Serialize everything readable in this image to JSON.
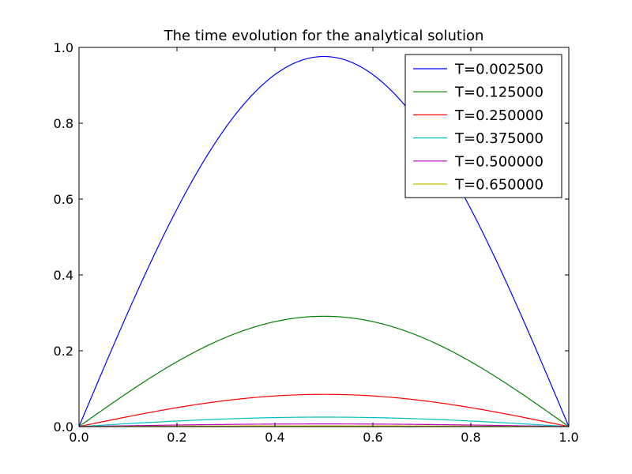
{
  "chart_data": {
    "type": "line",
    "title": "The time evolution for the analytical solution",
    "xlabel": "",
    "ylabel": "",
    "xlim": [
      0.0,
      1.0
    ],
    "ylim": [
      0.0,
      1.0
    ],
    "xticks": [
      "0.0",
      "0.2",
      "0.4",
      "0.6",
      "0.8",
      "1.0"
    ],
    "yticks": [
      "0.0",
      "0.2",
      "0.4",
      "0.6",
      "0.8",
      "1.0"
    ],
    "grid": false,
    "legend_position": "top-right",
    "curve_shape": "half-sine",
    "series": [
      {
        "name": "T=0.002500",
        "color": "#0000ff",
        "peak": 0.976,
        "x": [
          0.0,
          0.1,
          0.2,
          0.3,
          0.4,
          0.5,
          0.6,
          0.7,
          0.8,
          0.9,
          1.0
        ],
        "y": [
          0.0,
          0.302,
          0.574,
          0.79,
          0.928,
          0.976,
          0.928,
          0.79,
          0.574,
          0.302,
          0.0
        ]
      },
      {
        "name": "T=0.125000",
        "color": "#008000",
        "peak": 0.291,
        "x": [
          0.0,
          0.1,
          0.2,
          0.3,
          0.4,
          0.5,
          0.6,
          0.7,
          0.8,
          0.9,
          1.0
        ],
        "y": [
          0.0,
          0.09,
          0.171,
          0.235,
          0.277,
          0.291,
          0.277,
          0.235,
          0.171,
          0.09,
          0.0
        ]
      },
      {
        "name": "T=0.250000",
        "color": "#ff0000",
        "peak": 0.085,
        "x": [
          0.0,
          0.1,
          0.2,
          0.3,
          0.4,
          0.5,
          0.6,
          0.7,
          0.8,
          0.9,
          1.0
        ],
        "y": [
          0.0,
          0.026,
          0.05,
          0.069,
          0.081,
          0.085,
          0.081,
          0.069,
          0.05,
          0.026,
          0.0
        ]
      },
      {
        "name": "T=0.375000",
        "color": "#00bfbf",
        "peak": 0.025,
        "x": [
          0.0,
          0.1,
          0.2,
          0.3,
          0.4,
          0.5,
          0.6,
          0.7,
          0.8,
          0.9,
          1.0
        ],
        "y": [
          0.0,
          0.008,
          0.015,
          0.02,
          0.024,
          0.025,
          0.024,
          0.02,
          0.015,
          0.008,
          0.0
        ]
      },
      {
        "name": "T=0.500000",
        "color": "#bf00bf",
        "peak": 0.007,
        "x": [
          0.0,
          0.1,
          0.2,
          0.3,
          0.4,
          0.5,
          0.6,
          0.7,
          0.8,
          0.9,
          1.0
        ],
        "y": [
          0.0,
          0.002,
          0.004,
          0.006,
          0.007,
          0.007,
          0.007,
          0.006,
          0.004,
          0.002,
          0.0
        ]
      },
      {
        "name": "T=0.650000",
        "color": "#bfbf00",
        "peak": 0.002,
        "x": [
          0.0,
          0.1,
          0.2,
          0.3,
          0.4,
          0.5,
          0.6,
          0.7,
          0.8,
          0.9,
          1.0
        ],
        "y": [
          0.0,
          0.001,
          0.001,
          0.002,
          0.002,
          0.002,
          0.002,
          0.002,
          0.001,
          0.001,
          0.0
        ]
      }
    ]
  }
}
